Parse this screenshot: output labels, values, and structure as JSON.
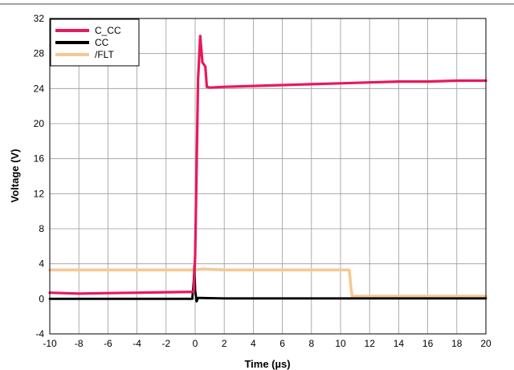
{
  "chart_data": {
    "type": "line",
    "xlabel": "Time (µs)",
    "ylabel": "Voltage (V)",
    "xlim": [
      -10,
      20
    ],
    "ylim": [
      -4,
      32
    ],
    "xticks": [
      -10,
      -8,
      -6,
      -4,
      -2,
      0,
      2,
      4,
      6,
      8,
      10,
      12,
      14,
      16,
      18,
      20
    ],
    "yticks": [
      -4,
      0,
      4,
      8,
      12,
      16,
      20,
      24,
      28,
      32
    ],
    "grid": true,
    "legend_position": "top-left",
    "series": [
      {
        "name": "C_CC",
        "color": "#e8195a",
        "x": [
          -10,
          -8,
          -6,
          -4,
          -2,
          -0.1,
          0,
          0.2,
          0.35,
          0.5,
          0.7,
          0.8,
          1,
          2,
          4,
          6,
          8,
          10,
          12,
          14,
          16,
          18,
          20
        ],
        "y": [
          0.7,
          0.6,
          0.65,
          0.7,
          0.75,
          0.8,
          5,
          25,
          30,
          27,
          26.5,
          24.2,
          24.1,
          24.2,
          24.3,
          24.4,
          24.5,
          24.6,
          24.7,
          24.8,
          24.8,
          24.9,
          24.9
        ]
      },
      {
        "name": "CC",
        "color": "#000000",
        "x": [
          -10,
          -8,
          -6,
          -4,
          -2,
          -0.2,
          -0.1,
          -0.05,
          0,
          0.1,
          0.2,
          0.3,
          2,
          4,
          6,
          8,
          10,
          12,
          14,
          16,
          18,
          20
        ],
        "y": [
          0,
          0,
          0,
          0,
          0,
          0,
          2,
          3.8,
          1,
          -0.3,
          0.1,
          0.1,
          0.05,
          0.05,
          0.05,
          0.05,
          0.05,
          0.05,
          0.05,
          0.05,
          0.05,
          0.05
        ]
      },
      {
        "name": "/FLT",
        "color": "#f5c896",
        "x": [
          -10,
          -2,
          0,
          0.5,
          2,
          6,
          10.6,
          10.7,
          10.8,
          12,
          16,
          20
        ],
        "y": [
          3.3,
          3.3,
          3.3,
          3.4,
          3.3,
          3.3,
          3.3,
          1.5,
          0.3,
          0.3,
          0.3,
          0.3
        ]
      }
    ]
  }
}
